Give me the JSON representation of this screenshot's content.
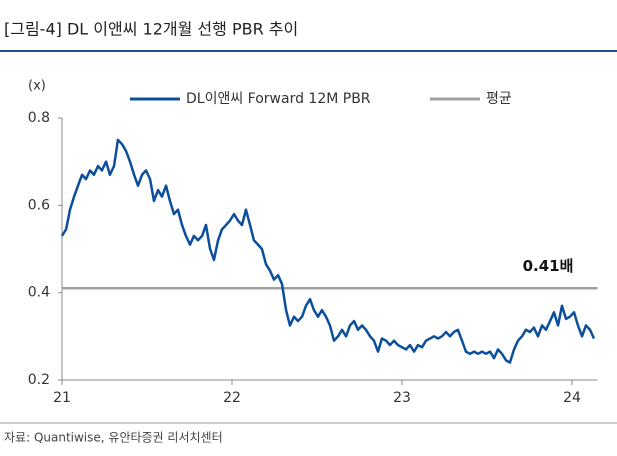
{
  "chart_data": {
    "type": "line",
    "title": "[그림-4] DL 이앤씨 12개월 선행 PBR 추이",
    "y_unit": "(x)",
    "source": "자료: Quantiwise, 유안타증권 리서치센터",
    "x": [
      21.0,
      21.024,
      21.047,
      21.071,
      21.094,
      21.118,
      21.141,
      21.165,
      21.188,
      21.212,
      21.235,
      21.259,
      21.282,
      21.306,
      21.329,
      21.353,
      21.376,
      21.4,
      21.424,
      21.447,
      21.471,
      21.494,
      21.518,
      21.541,
      21.565,
      21.588,
      21.612,
      21.635,
      21.659,
      21.682,
      21.706,
      21.729,
      21.753,
      21.776,
      21.8,
      21.824,
      21.847,
      21.871,
      21.894,
      21.918,
      21.941,
      21.965,
      21.988,
      22.012,
      22.035,
      22.059,
      22.082,
      22.106,
      22.129,
      22.153,
      22.176,
      22.2,
      22.224,
      22.247,
      22.271,
      22.294,
      22.318,
      22.341,
      22.365,
      22.388,
      22.412,
      22.435,
      22.459,
      22.482,
      22.506,
      22.529,
      22.553,
      22.576,
      22.6,
      22.624,
      22.647,
      22.671,
      22.694,
      22.718,
      22.741,
      22.765,
      22.788,
      22.812,
      22.835,
      22.859,
      22.882,
      22.906,
      22.929,
      22.953,
      22.976,
      23.0,
      23.024,
      23.047,
      23.071,
      23.094,
      23.118,
      23.141,
      23.165,
      23.188,
      23.212,
      23.235,
      23.259,
      23.282,
      23.306,
      23.329,
      23.353,
      23.376,
      23.4,
      23.424,
      23.447,
      23.471,
      23.494,
      23.518,
      23.541,
      23.565,
      23.588,
      23.612,
      23.635,
      23.659,
      23.682,
      23.706,
      23.729,
      23.753,
      23.776,
      23.8,
      23.824,
      23.847,
      23.871,
      23.894,
      23.918,
      23.941,
      23.965,
      23.988,
      24.012,
      24.035,
      24.059,
      24.082,
      24.106,
      24.129
    ],
    "series": [
      {
        "name": "DL이앤씨 Forward 12M PBR",
        "color": "#0b4f9c",
        "values": [
          0.53,
          0.545,
          0.59,
          0.62,
          0.645,
          0.67,
          0.66,
          0.68,
          0.67,
          0.69,
          0.68,
          0.7,
          0.67,
          0.69,
          0.75,
          0.74,
          0.725,
          0.7,
          0.67,
          0.645,
          0.67,
          0.68,
          0.66,
          0.61,
          0.635,
          0.62,
          0.645,
          0.61,
          0.58,
          0.59,
          0.555,
          0.53,
          0.51,
          0.53,
          0.52,
          0.53,
          0.555,
          0.5,
          0.475,
          0.52,
          0.545,
          0.555,
          0.565,
          0.58,
          0.565,
          0.555,
          0.59,
          0.555,
          0.52,
          0.51,
          0.5,
          0.465,
          0.45,
          0.43,
          0.44,
          0.42,
          0.36,
          0.325,
          0.345,
          0.335,
          0.345,
          0.37,
          0.385,
          0.36,
          0.345,
          0.36,
          0.345,
          0.325,
          0.29,
          0.3,
          0.315,
          0.3,
          0.325,
          0.335,
          0.315,
          0.325,
          0.315,
          0.3,
          0.29,
          0.265,
          0.295,
          0.29,
          0.28,
          0.29,
          0.28,
          0.275,
          0.27,
          0.28,
          0.265,
          0.28,
          0.275,
          0.29,
          0.295,
          0.3,
          0.295,
          0.3,
          0.31,
          0.3,
          0.31,
          0.315,
          0.29,
          0.265,
          0.26,
          0.265,
          0.26,
          0.265,
          0.26,
          0.265,
          0.25,
          0.27,
          0.26,
          0.245,
          0.24,
          0.27,
          0.29,
          0.3,
          0.315,
          0.31,
          0.32,
          0.3,
          0.325,
          0.315,
          0.335,
          0.355,
          0.325,
          0.37,
          0.34,
          0.345,
          0.355,
          0.325,
          0.3,
          0.325,
          0.315,
          0.295
        ]
      }
    ],
    "average": {
      "name": "평균",
      "color": "#a0a0a0",
      "value": 0.41,
      "label": "0.41배"
    },
    "xlim": [
      21,
      24.15
    ],
    "xticks": [
      21,
      22,
      23,
      24
    ],
    "ylim": [
      0.2,
      0.8
    ],
    "yticks": [
      0.2,
      0.4,
      0.6,
      0.8
    ]
  }
}
